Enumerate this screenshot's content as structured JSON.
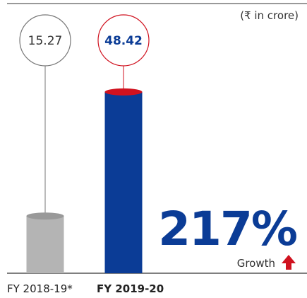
{
  "chart_data": {
    "type": "bar",
    "subtitle": "(₹ in crore)",
    "categories": [
      "FY 2018-19*",
      "FY 2019-20"
    ],
    "values": [
      15.27,
      48.42
    ],
    "colors": [
      "#b4b4b4",
      "#0b3c96"
    ],
    "accent_color": "#d0121f",
    "annotation": "217%",
    "annotation_label": "Growth"
  }
}
